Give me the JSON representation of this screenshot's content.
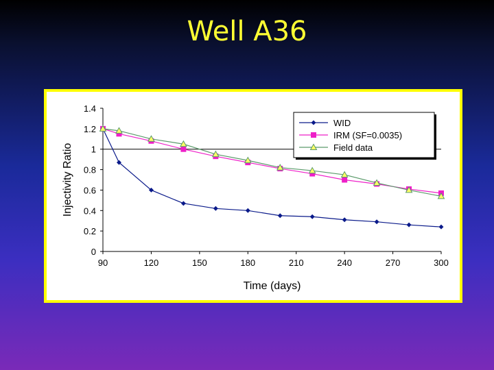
{
  "slide": {
    "title": "Well A36"
  },
  "chart_data": {
    "type": "line",
    "title": "",
    "xlabel": "Time (days)",
    "ylabel": "Injectivity Ratio",
    "xlim": [
      90,
      300
    ],
    "ylim": [
      0,
      1.4
    ],
    "xticks": [
      90,
      120,
      150,
      180,
      210,
      240,
      270,
      300
    ],
    "yticks": [
      0,
      0.2,
      0.4,
      0.6,
      0.8,
      1,
      1.2,
      1.4
    ],
    "reference_line_y": 1,
    "grid": false,
    "legend_position": "top-right",
    "series": [
      {
        "name": "WID",
        "marker": "diamond",
        "color": "#0a1a8a",
        "x": [
          90,
          100,
          120,
          140,
          160,
          180,
          200,
          220,
          240,
          260,
          280,
          300
        ],
        "y": [
          1.2,
          0.87,
          0.6,
          0.47,
          0.42,
          0.4,
          0.35,
          0.34,
          0.31,
          0.29,
          0.26,
          0.24
        ]
      },
      {
        "name": "IRM (SF=0.0035)",
        "marker": "square",
        "color": "#ee1fc8",
        "x": [
          90,
          100,
          120,
          140,
          160,
          180,
          200,
          220,
          240,
          260,
          280,
          300
        ],
        "y": [
          1.2,
          1.15,
          1.08,
          1.0,
          0.93,
          0.87,
          0.81,
          0.76,
          0.7,
          0.66,
          0.61,
          0.57
        ]
      },
      {
        "name": "Field data",
        "marker": "triangle",
        "color": "#5a9a6a",
        "x": [
          90,
          100,
          120,
          140,
          160,
          180,
          200,
          220,
          240,
          260,
          280,
          300
        ],
        "y": [
          1.2,
          1.18,
          1.1,
          1.05,
          0.95,
          0.89,
          0.82,
          0.79,
          0.75,
          0.67,
          0.6,
          0.54
        ]
      }
    ]
  }
}
